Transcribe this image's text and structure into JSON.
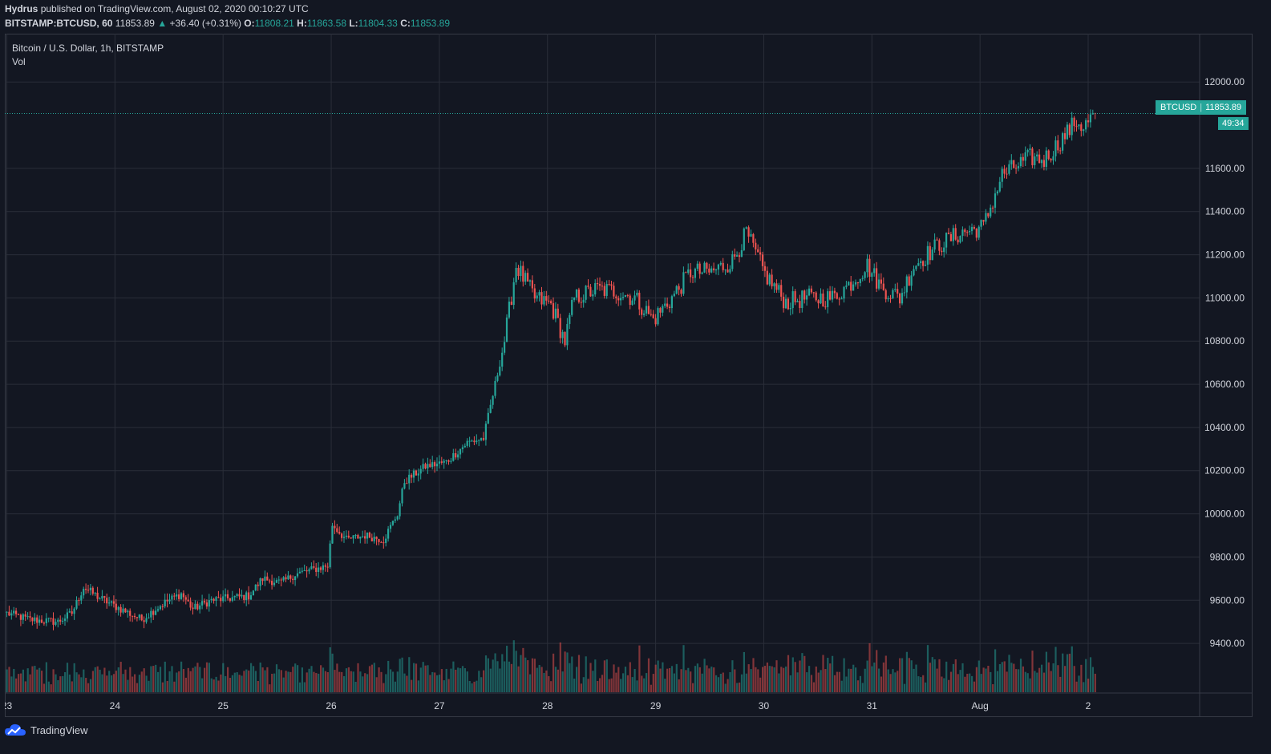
{
  "header": {
    "author": "Hydrus",
    "published_text": "published on TradingView.com, August 02, 2020 00:10:27 UTC",
    "symbol": "BITSTAMP:BTCUSD, 60",
    "last_price": "11853.89",
    "change_arrow": "▲",
    "change": "+36.40 (+0.31%)",
    "o_label": "O:",
    "o_value": "11808.21",
    "h_label": "H:",
    "h_value": "11863.58",
    "l_label": "L:",
    "l_value": "11804.33",
    "c_label": "C:",
    "c_value": "11853.89"
  },
  "legend": {
    "title": "Bitcoin / U.S. Dollar, 1h, BITSTAMP",
    "volume_label": "Vol"
  },
  "price_tag": {
    "symbol": "BTCUSD",
    "price": "11853.89",
    "timer": "49:34"
  },
  "footer": {
    "brand": "TradingView"
  },
  "colors": {
    "background": "#131722",
    "grid": "#2a2e39",
    "up": "#26a69a",
    "down": "#ef5350",
    "text": "#d1d4dc"
  },
  "chart_data": {
    "type": "candlestick",
    "title": "Bitcoin / U.S. Dollar, 1h, BITSTAMP",
    "x_ticks": [
      "23",
      "24",
      "25",
      "26",
      "27",
      "28",
      "29",
      "30",
      "31",
      "Aug",
      "2"
    ],
    "y_ticks": [
      9400,
      9600,
      9800,
      10000,
      10200,
      10400,
      10600,
      10800,
      11000,
      11200,
      11400,
      11600,
      12000
    ],
    "ylim": [
      9170,
      12220
    ],
    "last_price": 11853.89,
    "grid": true,
    "anchors": [
      [
        0,
        9540
      ],
      [
        10,
        9510
      ],
      [
        22,
        9500
      ],
      [
        28,
        9540
      ],
      [
        33,
        9660
      ],
      [
        40,
        9610
      ],
      [
        47,
        9570
      ],
      [
        58,
        9510
      ],
      [
        64,
        9560
      ],
      [
        68,
        9590
      ],
      [
        75,
        9630
      ],
      [
        80,
        9560
      ],
      [
        88,
        9600
      ],
      [
        104,
        9620
      ],
      [
        110,
        9700
      ],
      [
        118,
        9680
      ],
      [
        124,
        9720
      ],
      [
        138,
        9760
      ],
      [
        140,
        9950
      ],
      [
        146,
        9880
      ],
      [
        154,
        9900
      ],
      [
        162,
        9880
      ],
      [
        168,
        10000
      ],
      [
        171,
        10150
      ],
      [
        180,
        10220
      ],
      [
        189,
        10240
      ],
      [
        198,
        10330
      ],
      [
        205,
        10350
      ],
      [
        214,
        10800
      ],
      [
        219,
        11150
      ],
      [
        227,
        11000
      ],
      [
        234,
        10970
      ],
      [
        240,
        10800
      ],
      [
        244,
        11000
      ],
      [
        254,
        11040
      ],
      [
        262,
        11030
      ],
      [
        270,
        11000
      ],
      [
        278,
        10900
      ],
      [
        286,
        11000
      ],
      [
        294,
        11120
      ],
      [
        303,
        11120
      ],
      [
        312,
        11170
      ],
      [
        318,
        11300
      ],
      [
        326,
        11110
      ],
      [
        335,
        10980
      ],
      [
        344,
        11000
      ],
      [
        355,
        11000
      ],
      [
        362,
        11060
      ],
      [
        370,
        11150
      ],
      [
        376,
        11050
      ],
      [
        384,
        11000
      ],
      [
        390,
        11150
      ],
      [
        400,
        11240
      ],
      [
        410,
        11300
      ],
      [
        420,
        11330
      ],
      [
        428,
        11570
      ],
      [
        440,
        11650
      ],
      [
        446,
        11640
      ],
      [
        451,
        11700
      ],
      [
        460,
        11820
      ],
      [
        463,
        11790
      ],
      [
        468,
        11854
      ]
    ],
    "volume_ylim": [
      0,
      500
    ],
    "n_bars": 469,
    "timeframe": "1h"
  }
}
